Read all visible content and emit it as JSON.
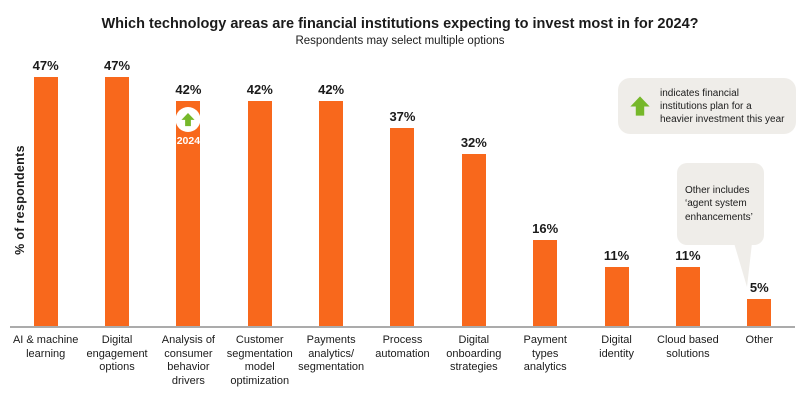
{
  "chart_data": {
    "type": "bar",
    "title": "Which technology areas are financial institutions expecting to invest most in for 2024?",
    "subtitle": "Respondents may select multiple options",
    "ylabel": "% of respondents",
    "xlabel": "",
    "ylim": [
      0,
      50
    ],
    "grid": false,
    "categories": [
      "AI & machine\nlearning",
      "Digital\nengagement\noptions",
      "Analysis of\nconsumer\nbehavior\ndrivers",
      "Customer\nsegmentation\nmodel\noptimization",
      "Payments\nanalytics/\nsegmentation",
      "Process\nautomation",
      "Digital\nonboarding\nstrategies",
      "Payment\ntypes\nanalytics",
      "Digital\nidentity",
      "Cloud based\nsolutions",
      "Other"
    ],
    "values": [
      47,
      47,
      42,
      42,
      42,
      37,
      32,
      16,
      11,
      11,
      5
    ],
    "labels": [
      "47%",
      "47%",
      "42%",
      "42%",
      "42%",
      "37%",
      "32%",
      "16%",
      "11%",
      "11%",
      "5%"
    ]
  },
  "legend": {
    "icon": "up-arrow-icon",
    "text": "indicates financial\ninstitutions plan for a\nheavier investment this year",
    "position": "top-right"
  },
  "callout": {
    "text": "Other includes\n‘agent system\nenhancements’",
    "points_to": "Other"
  },
  "badge": {
    "bar_index": 2,
    "year": "2024",
    "icon": "up-arrow-icon"
  },
  "colors": {
    "bar": "#F8681C",
    "accent_green": "#76B82A",
    "box_bg": "#EFEDE9",
    "axis": "#ABABAB",
    "text": "#1B1B1B",
    "badge_text": "#FFFFFF"
  }
}
